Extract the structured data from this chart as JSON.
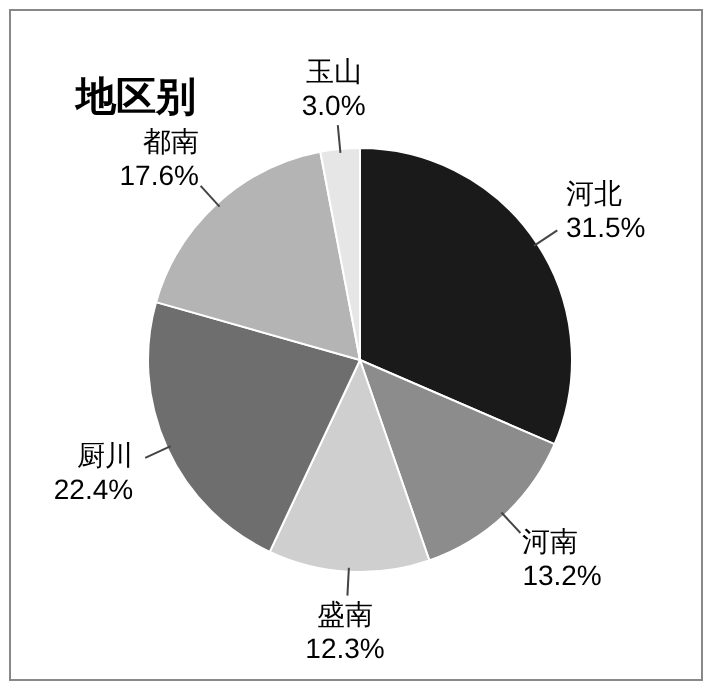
{
  "chart_data": {
    "type": "pie",
    "title": "地区别",
    "categories": [
      "河北",
      "河南",
      "盛南",
      "厨川",
      "都南",
      "玉山"
    ],
    "values": [
      31.5,
      13.2,
      12.3,
      22.4,
      17.6,
      3.0
    ],
    "value_labels": [
      "31.5%",
      "13.2%",
      "12.3%",
      "22.4%",
      "17.6%",
      "3.0%"
    ],
    "colors": [
      "#1a1a1a",
      "#8c8c8c",
      "#cfcfcf",
      "#6e6e6e",
      "#b4b4b4",
      "#e6e6e6"
    ]
  }
}
